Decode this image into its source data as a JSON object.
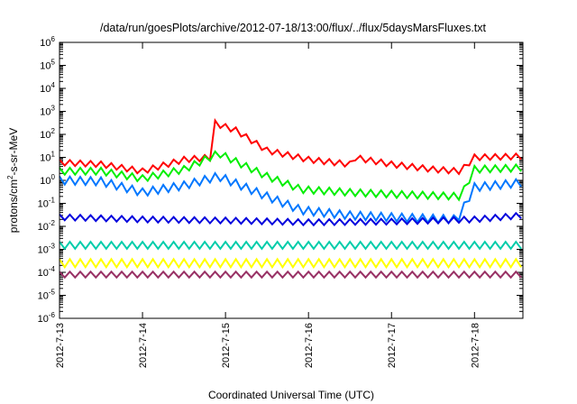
{
  "chart_data": {
    "type": "line",
    "title": "/data/run/goesPlots/archive/2012-07-18/13:00/flux/../flux/5daysMarsFluxes.txt",
    "xlabel": "Coordinated Universal Time (UTC)",
    "ylabel": "protons/cm²-s-sr-MeV",
    "ylabel_parts": {
      "base": "protons/cm",
      "sup": "2",
      "rest": "-s-sr-MeV"
    },
    "yscale": "log",
    "ylim": [
      1e-06,
      1000000.0
    ],
    "xlim": [
      "2012-07-13",
      "2012-07-18 14:00"
    ],
    "grid": false,
    "y_ticks": [
      {
        "base": "10",
        "exp": "6"
      },
      {
        "base": "10",
        "exp": "5"
      },
      {
        "base": "10",
        "exp": "4"
      },
      {
        "base": "10",
        "exp": "3"
      },
      {
        "base": "10",
        "exp": "2"
      },
      {
        "base": "10",
        "exp": "1"
      },
      {
        "base": "10",
        "exp": "0"
      },
      {
        "base": "10",
        "exp": "-1"
      },
      {
        "base": "10",
        "exp": "-2"
      },
      {
        "base": "10",
        "exp": "-3"
      },
      {
        "base": "10",
        "exp": "-4"
      },
      {
        "base": "10",
        "exp": "-5"
      },
      {
        "base": "10",
        "exp": "-6"
      }
    ],
    "x_ticks": [
      "2012-7-13",
      "2012-7-14",
      "2012-7-15",
      "2012-7-16",
      "2012-7-17",
      "2012-7-18"
    ],
    "series": [
      {
        "color": "#ff0000",
        "x": [
          "2012-07-13 00:00",
          "2012-07-13 12:00",
          "2012-07-14 00:00",
          "2012-07-14 12:00",
          "2012-07-14 20:00",
          "2012-07-14 21:00",
          "2012-07-15 03:00",
          "2012-07-15 12:00",
          "2012-07-16 00:00",
          "2012-07-16 12:00",
          "2012-07-16 13:00",
          "2012-07-17 00:00",
          "2012-07-17 12:00",
          "2012-07-17 20:00",
          "2012-07-18 00:00",
          "2012-07-18 14:00"
        ],
        "y": [
          6,
          5,
          2.5,
          8,
          10,
          300,
          150,
          20,
          8,
          5,
          10,
          5,
          3,
          2.5,
          10,
          11
        ]
      },
      {
        "color": "#00ee00",
        "x": [
          "2012-07-13 00:00",
          "2012-07-13 12:00",
          "2012-07-14 00:00",
          "2012-07-14 12:00",
          "2012-07-14 22:00",
          "2012-07-15 12:00",
          "2012-07-15 22:00",
          "2012-07-16 12:00",
          "2012-07-17 00:00",
          "2012-07-17 20:00",
          "2012-07-18 00:00",
          "2012-07-18 14:00"
        ],
        "y": [
          2.5,
          2.5,
          1.2,
          3,
          15,
          1.5,
          0.4,
          0.3,
          0.25,
          0.2,
          3,
          3.5
        ]
      },
      {
        "color": "#0077ff",
        "x": [
          "2012-07-13 00:00",
          "2012-07-13 12:00",
          "2012-07-14 00:00",
          "2012-07-14 12:00",
          "2012-07-14 22:00",
          "2012-07-15 12:00",
          "2012-07-15 22:00",
          "2012-07-16 12:00",
          "2012-07-17 00:00",
          "2012-07-17 19:00",
          "2012-07-18 00:00",
          "2012-07-18 14:00"
        ],
        "y": [
          1,
          0.9,
          0.3,
          0.6,
          1.5,
          0.2,
          0.05,
          0.03,
          0.025,
          0.02,
          0.5,
          0.8
        ]
      },
      {
        "color": "#0000dd",
        "x": [
          "2012-07-13 00:00",
          "2012-07-14 00:00",
          "2012-07-15 00:00",
          "2012-07-16 00:00",
          "2012-07-17 00:00",
          "2012-07-18 00:00",
          "2012-07-18 14:00"
        ],
        "y": [
          0.025,
          0.02,
          0.018,
          0.015,
          0.016,
          0.02,
          0.03
        ]
      },
      {
        "color": "#00ccaa",
        "x": [
          "2012-07-13 00:00",
          "2012-07-14 00:00",
          "2012-07-15 00:00",
          "2012-07-16 00:00",
          "2012-07-17 00:00",
          "2012-07-18 00:00",
          "2012-07-18 14:00"
        ],
        "y": [
          0.0015,
          0.0015,
          0.0015,
          0.0015,
          0.0015,
          0.0015,
          0.0015
        ]
      },
      {
        "color": "#ffff00",
        "x": [
          "2012-07-13 00:00",
          "2012-07-14 00:00",
          "2012-07-15 00:00",
          "2012-07-16 00:00",
          "2012-07-17 00:00",
          "2012-07-18 00:00",
          "2012-07-18 14:00"
        ],
        "y": [
          0.00025,
          0.00025,
          0.00025,
          0.00025,
          0.00025,
          0.00025,
          0.00025
        ]
      },
      {
        "color": "#993366",
        "x": [
          "2012-07-13 00:00",
          "2012-07-14 00:00",
          "2012-07-15 00:00",
          "2012-07-16 00:00",
          "2012-07-17 00:00",
          "2012-07-18 00:00",
          "2012-07-18 14:00"
        ],
        "y": [
          8e-05,
          8e-05,
          8e-05,
          8e-05,
          8e-05,
          8e-05,
          8e-05
        ]
      }
    ]
  }
}
